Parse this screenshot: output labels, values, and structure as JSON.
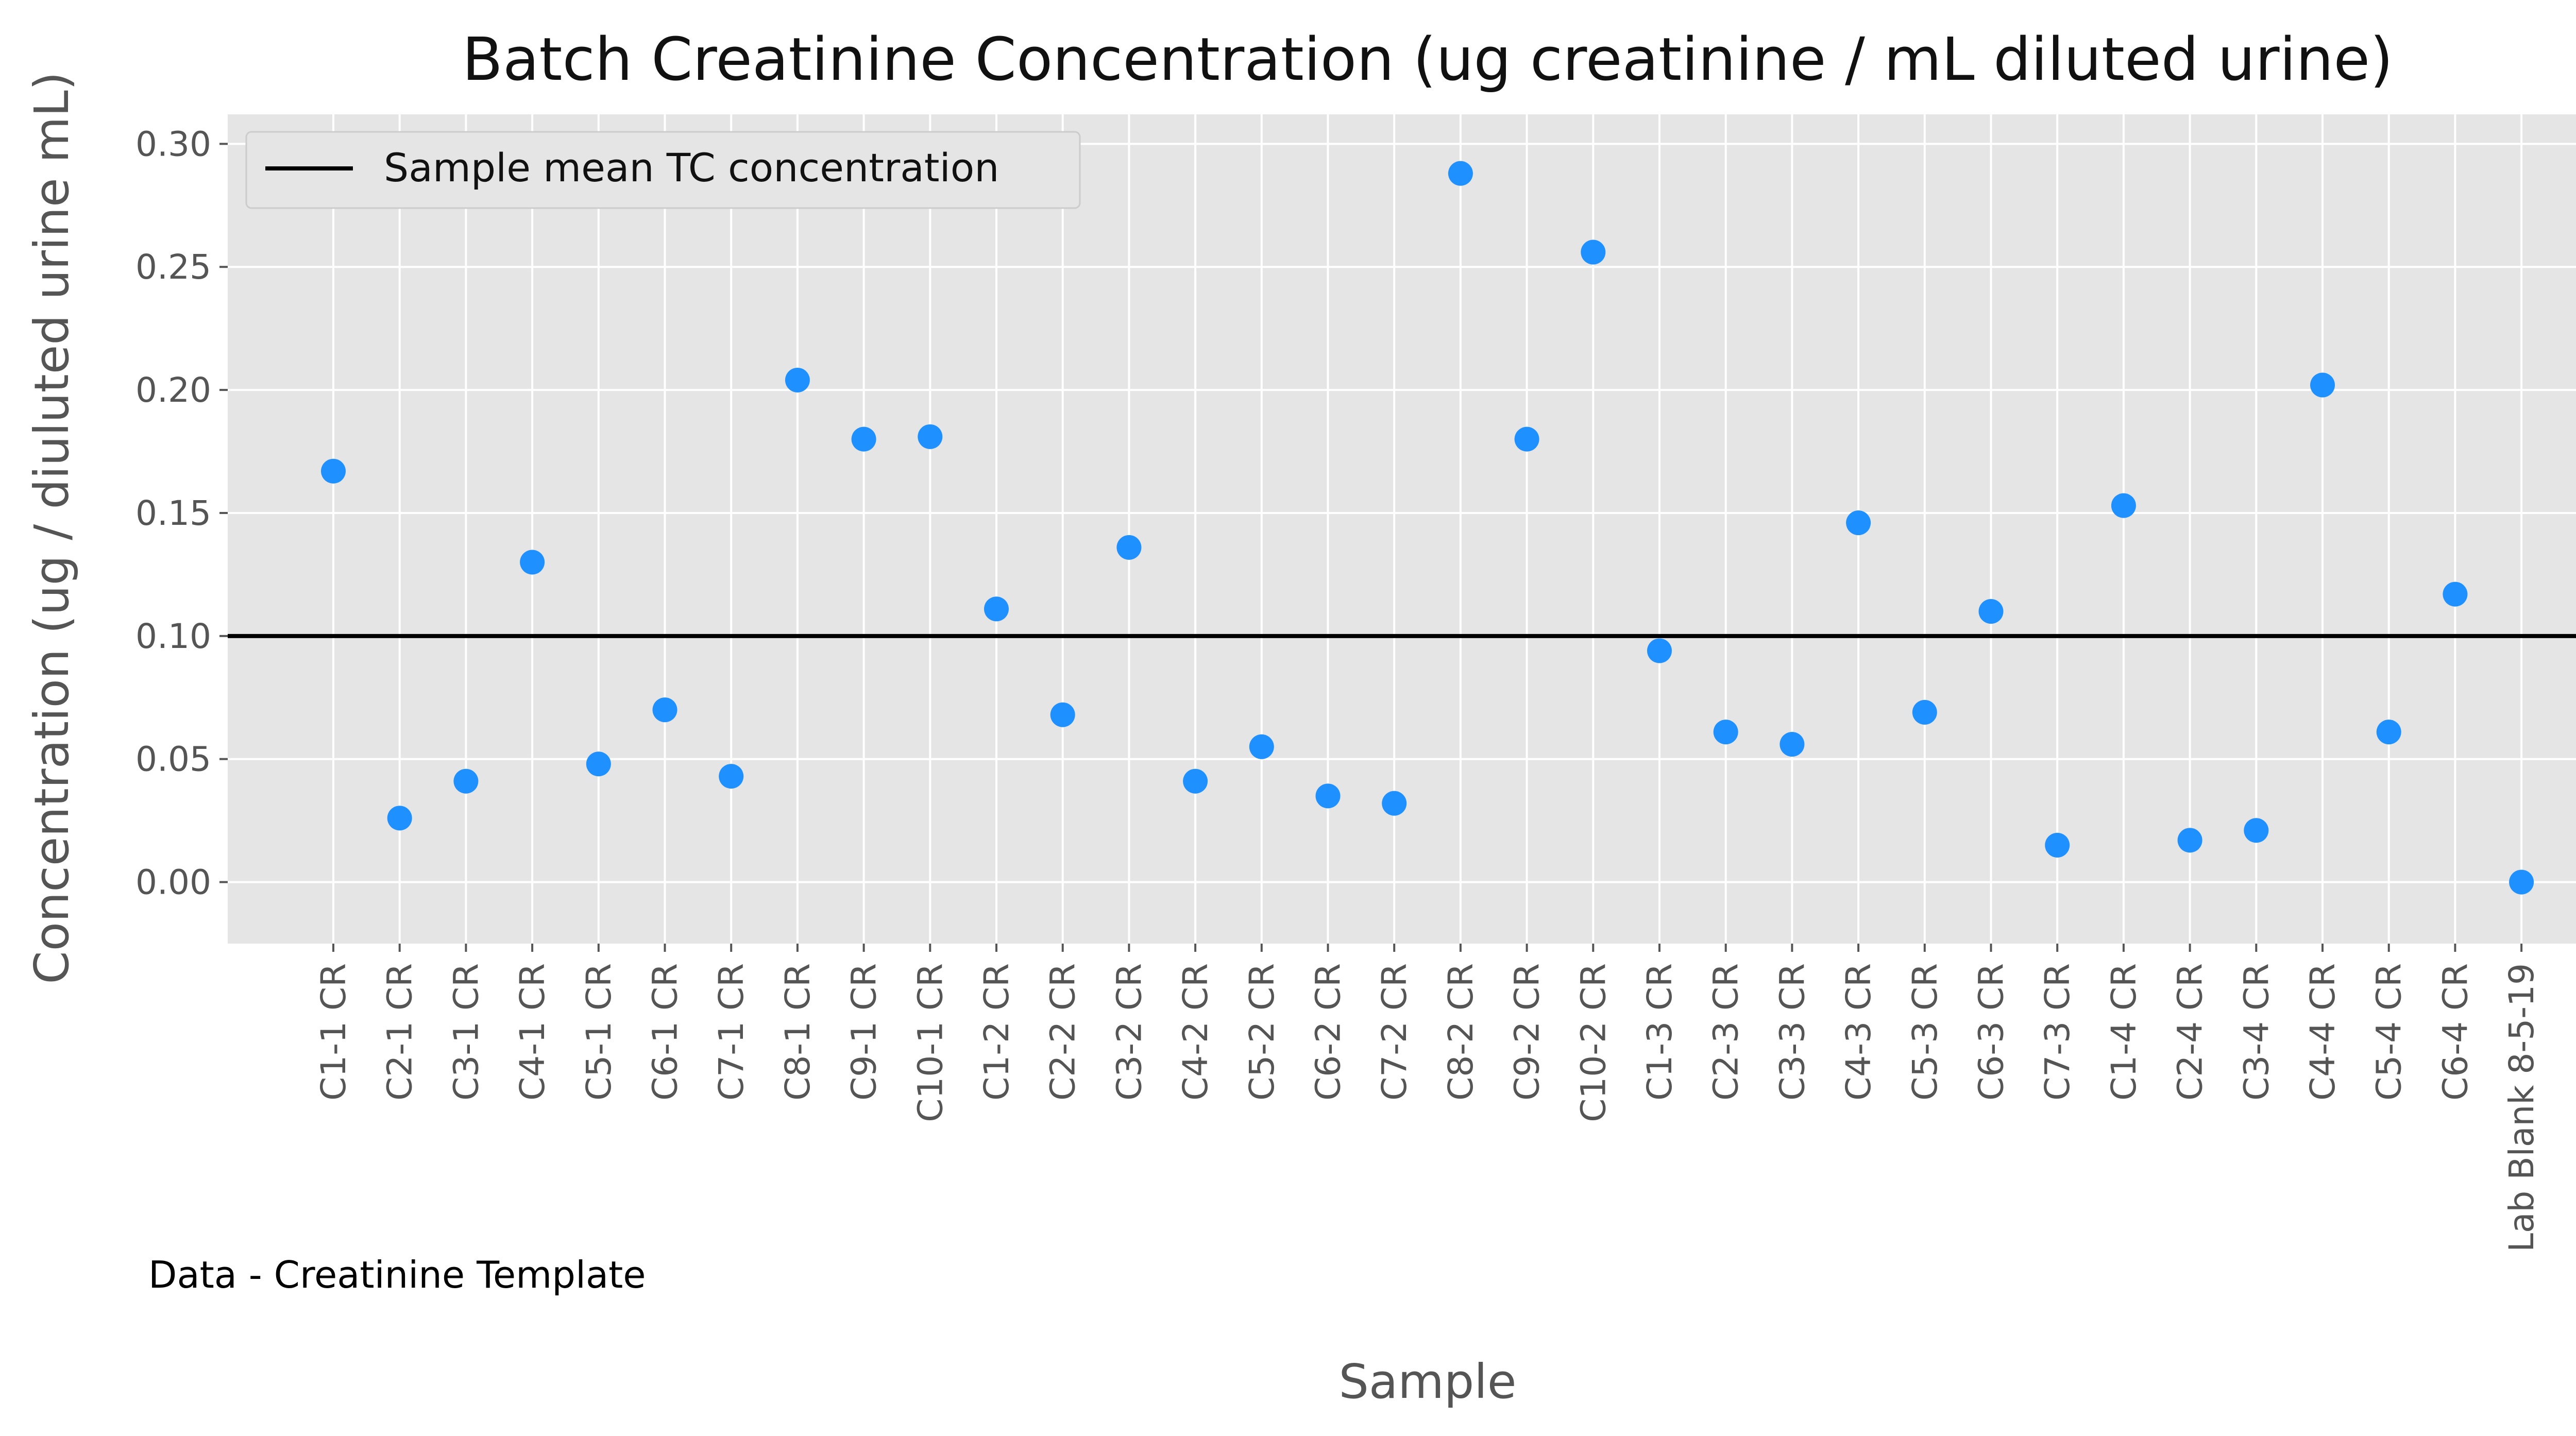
{
  "chart_data": {
    "type": "scatter",
    "title": "Batch Creatinine Concentration (ug creatinine / mL diluted urine)",
    "xlabel": "Sample",
    "ylabel": "Concentration (ug / diuluted urine mL)",
    "categories": [
      "C1-1 CR",
      "C2-1 CR",
      "C3-1 CR",
      "C4-1 CR",
      "C5-1 CR",
      "C6-1 CR",
      "C7-1 CR",
      "C8-1 CR",
      "C9-1 CR",
      "C10-1 CR",
      "C1-2 CR",
      "C2-2 CR",
      "C3-2 CR",
      "C4-2 CR",
      "C5-2 CR",
      "C6-2 CR",
      "C7-2 CR",
      "C8-2 CR",
      "C9-2 CR",
      "C10-2 CR",
      "C1-3 CR",
      "C2-3 CR",
      "C3-3 CR",
      "C4-3 CR",
      "C5-3 CR",
      "C6-3 CR",
      "C7-3 CR",
      "C1-4 CR",
      "C2-4 CR",
      "C3-4 CR",
      "C4-4 CR",
      "C5-4 CR",
      "C6-4 CR",
      "Lab Blank 8-5-19"
    ],
    "values": [
      0.167,
      0.026,
      0.041,
      0.13,
      0.048,
      0.07,
      0.043,
      0.204,
      0.18,
      0.181,
      0.111,
      0.068,
      0.136,
      0.041,
      0.055,
      0.035,
      0.032,
      0.288,
      0.18,
      0.256,
      0.094,
      0.061,
      0.056,
      0.146,
      0.069,
      0.11,
      0.015,
      0.153,
      0.017,
      0.021,
      0.202,
      0.061,
      0.117,
      0.0
    ],
    "mean_line": {
      "label": "Sample mean TC concentration",
      "value": 0.1
    },
    "ylim": [
      -0.025,
      0.312
    ],
    "yticks": [
      0.0,
      0.05,
      0.1,
      0.15,
      0.2,
      0.25,
      0.3
    ],
    "ytick_labels": [
      "0.00",
      "0.05",
      "0.10",
      "0.15",
      "0.20",
      "0.25",
      "0.30"
    ],
    "grid": true,
    "legend_position": "top-left",
    "annotation": "Data - Creatinine Template",
    "colors": {
      "points": "#1e90ff",
      "mean_line": "#000000",
      "plot_background": "#e5e5e5",
      "grid": "#ffffff"
    }
  }
}
